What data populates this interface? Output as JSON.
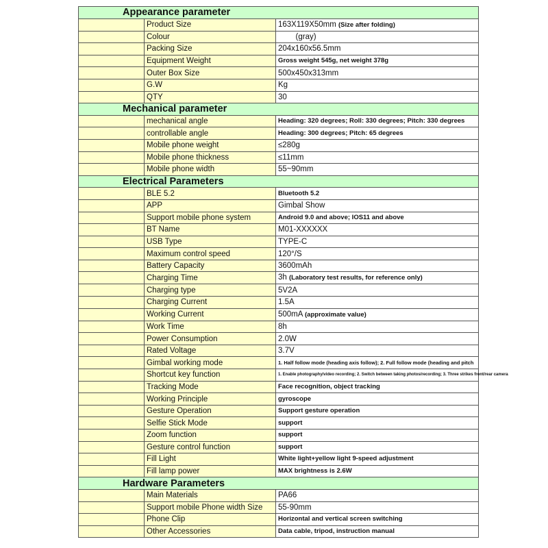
{
  "colors": {
    "section_bg": "#ccffcc",
    "label_bg": "#ffffcc",
    "value_bg": "#ffffff"
  },
  "sections": [
    {
      "title": "Appearance parameter",
      "rows": [
        {
          "label": "Product Size",
          "value": "163X119X50mm",
          "note": "(Size after folding)"
        },
        {
          "label": "Colour",
          "value": "        (gray)"
        },
        {
          "label": "Packing Size",
          "value": "204x160x56.5mm"
        },
        {
          "label": "Equipment Weight",
          "value": "Gross weight 545g, net weight 378g",
          "style": "small"
        },
        {
          "label": "Outer Box Size",
          "value": "500x450x313mm"
        },
        {
          "label": "G.W",
          "value": "Kg"
        },
        {
          "label": "QTY",
          "value": "30"
        }
      ]
    },
    {
      "title": "Mechanical parameter",
      "rows": [
        {
          "label": "mechanical angle",
          "value": "Heading: 320 degrees; Roll: 330 degrees; Pitch: 330 degrees",
          "style": "small"
        },
        {
          "label": "controllable angle",
          "value": "Heading: 300 degrees; Pitch: 65 degrees",
          "style": "small"
        },
        {
          "label": "Mobile phone weight",
          "value": "≤280g"
        },
        {
          "label": "Mobile phone thickness",
          "value": "≤11mm"
        },
        {
          "label": "Mobile phone width",
          "value": "55~90mm"
        }
      ]
    },
    {
      "title": "Electrical Parameters",
      "rows": [
        {
          "label": "BLE 5.2",
          "value": "Bluetooth 5.2",
          "style": "small"
        },
        {
          "label": "APP",
          "value": "Gimbal Show"
        },
        {
          "label": "Support mobile phone system",
          "value": "Android 9.0 and above; IOS11 and above",
          "style": "small"
        },
        {
          "label": "BT Name",
          "value": "M01-XXXXXX"
        },
        {
          "label": "USB Type",
          "value": "TYPE-C"
        },
        {
          "label": "Maximum control speed",
          "value": "120°/S"
        },
        {
          "label": "Battery Capacity",
          "value": "3600mAh"
        },
        {
          "label": "Charging Time",
          "value": "3h",
          "note": "(Laboratory test results, for reference only)"
        },
        {
          "label": "Charging type",
          "value": "5V2A"
        },
        {
          "label": "Charging Current",
          "value": "1.5A"
        },
        {
          "label": "Working Current",
          "value": "500mA",
          "note": "(approximate value)"
        },
        {
          "label": "Work Time",
          "value": "8h"
        },
        {
          "label": "Power Consumption",
          "value": "2.0W"
        },
        {
          "label": "Rated Voltage",
          "value": "3.7V"
        },
        {
          "label": "Gimbal working mode",
          "value": "1. Half follow mode (heading axis follow); 2. Full follow mode (heading and pitch",
          "style": "xs"
        },
        {
          "label": "Shortcut key function",
          "value": "1. Enable photography/video recording; 2. Switch between taking photos/recording; 3. Three strikes front/rear camera",
          "style": "tiny"
        },
        {
          "label": "Tracking Mode",
          "value": "Face recognition, object tracking",
          "style": "small"
        },
        {
          "label": "Working Principle",
          "value": "gyroscope",
          "style": "small"
        },
        {
          "label": "Gesture Operation",
          "value": "Support gesture operation",
          "style": "small"
        },
        {
          "label": "Selfie Stick Mode",
          "value": "support",
          "style": "small"
        },
        {
          "label": "Zoom function",
          "value": "support",
          "style": "small"
        },
        {
          "label": "Gesture control function",
          "value": "support",
          "style": "small"
        },
        {
          "label": "Fill Light",
          "value": "White light+yellow light 9-speed adjustment",
          "style": "small"
        },
        {
          "label": "Fill lamp power",
          "value": "MAX brightness is 2.6W",
          "style": "small"
        }
      ]
    },
    {
      "title": "Hardware Parameters",
      "rows": [
        {
          "label": "Main Materials",
          "value": "PA66"
        },
        {
          "label": "Support mobile Phone width Size",
          "value": "55-90mm"
        },
        {
          "label": "Phone Clip",
          "value": "Horizontal and vertical screen switching",
          "style": "small"
        },
        {
          "label": "Other Accessories",
          "value": "Data cable, tripod, instruction manual",
          "style": "small"
        }
      ]
    }
  ]
}
